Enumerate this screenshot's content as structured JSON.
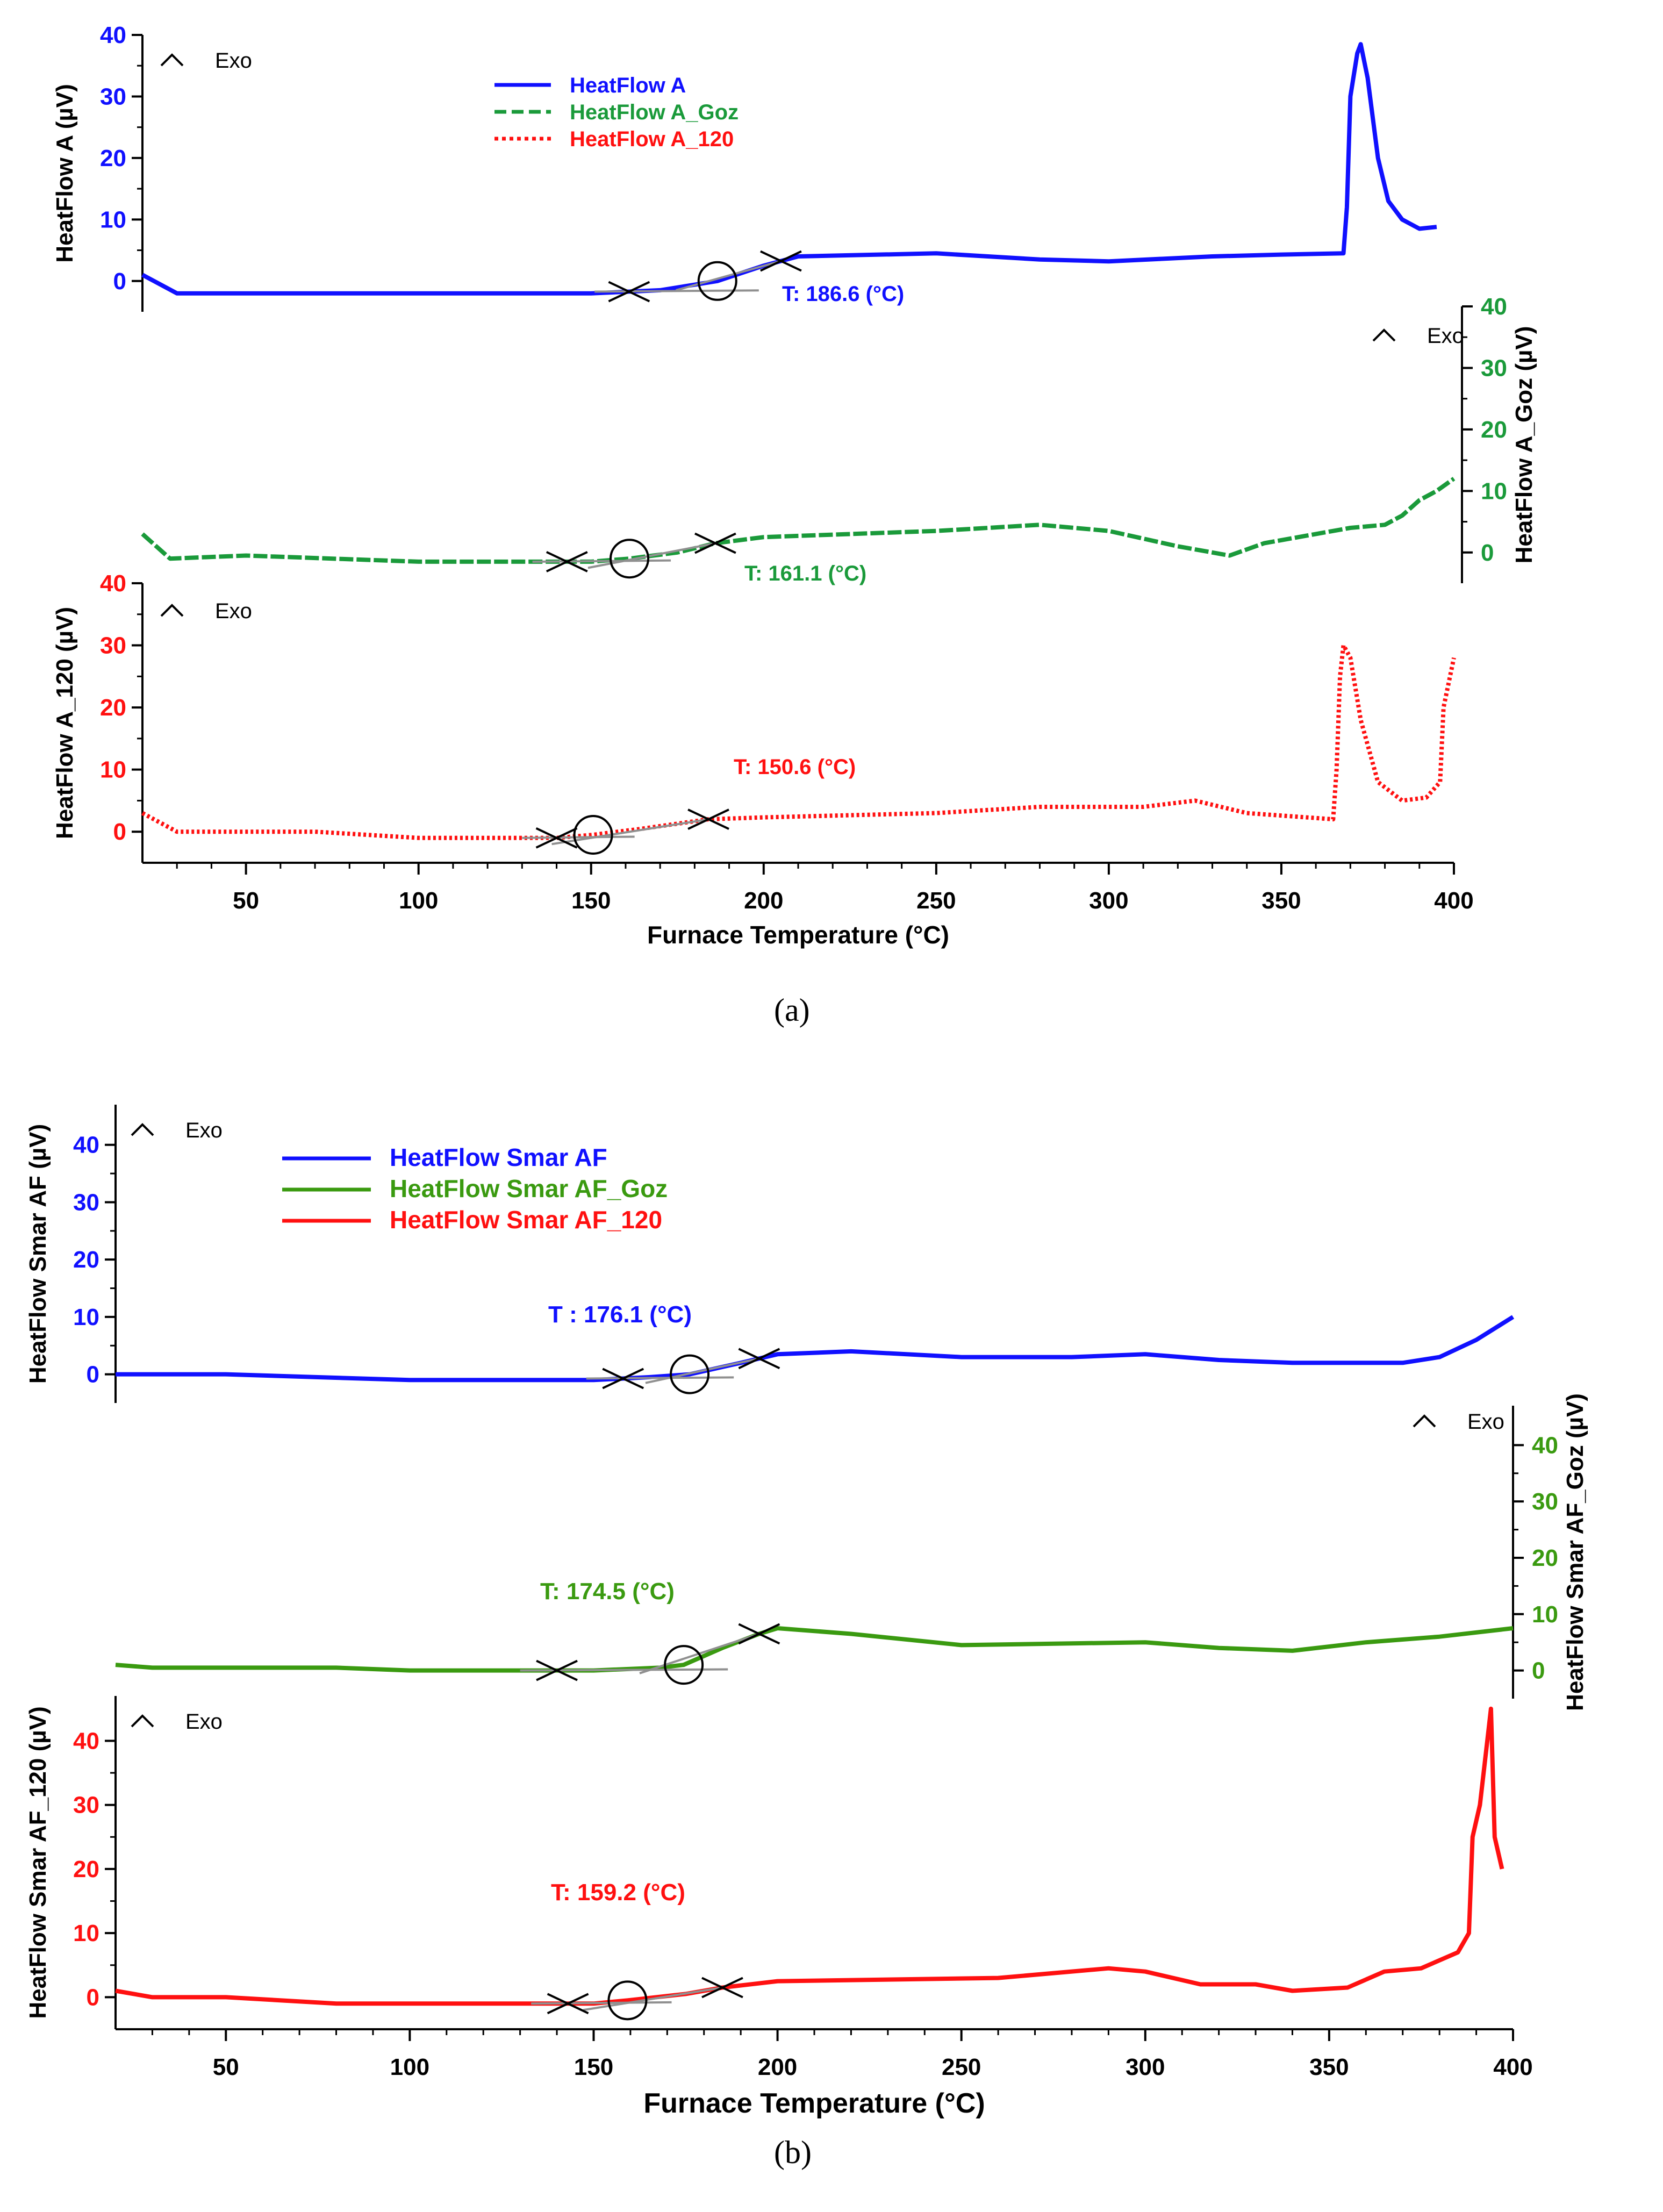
{
  "colors": {
    "blue": "#1010ff",
    "green": "#1a9a3a",
    "red": "#ff1010",
    "green_b": "#3a9a10",
    "tangent": "#909090",
    "axis": "#000000"
  },
  "common": {
    "exo_label": "Exo"
  },
  "panels": [
    {
      "caption": "(a)",
      "x_axis": {
        "label": "Furnace Temperature (°C)",
        "ticks": [
          "50",
          "100",
          "150",
          "200",
          "250",
          "300",
          "350",
          "400"
        ],
        "tick_values": [
          50,
          100,
          150,
          200,
          250,
          300,
          350,
          400
        ],
        "range": [
          20,
          400
        ]
      },
      "legend": [
        {
          "label": "HeatFlow   A",
          "style": "solid",
          "color_key": "blue"
        },
        {
          "label": "HeatFlow   A_Goz",
          "style": "dashed",
          "color_key": "green"
        },
        {
          "label": "HeatFlow   A_120",
          "style": "dotted",
          "color_key": "red"
        }
      ],
      "series": [
        {
          "name": "HeatFlow A",
          "color_key": "blue",
          "y_label": "HeatFlow  A (µV)",
          "y_ticks": [
            "0",
            "10",
            "20",
            "30",
            "40"
          ],
          "axis_side": "left",
          "tg_label": "T:  186.6  (°C)",
          "tg_value": 186.6,
          "onset": 161,
          "end": 205,
          "points": [
            [
              20,
              1
            ],
            [
              30,
              -2
            ],
            [
              100,
              -2
            ],
            [
              150,
              -2
            ],
            [
              170,
              -1.5
            ],
            [
              186.6,
              0
            ],
            [
              200,
              2.5
            ],
            [
              210,
              4
            ],
            [
              250,
              4.5
            ],
            [
              280,
              3.5
            ],
            [
              300,
              3.2
            ],
            [
              330,
              4
            ],
            [
              350,
              4.3
            ],
            [
              368,
              4.5
            ],
            [
              369,
              12
            ],
            [
              370,
              30
            ],
            [
              372,
              37
            ],
            [
              373,
              38.5
            ],
            [
              375,
              33
            ],
            [
              378,
              20
            ],
            [
              381,
              13
            ],
            [
              385,
              10
            ],
            [
              390,
              8.5
            ],
            [
              395,
              8.8
            ]
          ]
        },
        {
          "name": "HeatFlow A_Goz",
          "color_key": "green",
          "y_label": "HeatFlow  A_Goz (µV)",
          "y_ticks": [
            "0",
            "10",
            "20",
            "30",
            "40"
          ],
          "axis_side": "right",
          "tg_label": "T:  161.1  (°C)",
          "tg_value": 161.1,
          "onset": 143,
          "end": 186,
          "points": [
            [
              20,
              3
            ],
            [
              28,
              -1
            ],
            [
              50,
              -0.5
            ],
            [
              100,
              -1.5
            ],
            [
              150,
              -1.5
            ],
            [
              161.1,
              -1
            ],
            [
              175,
              0
            ],
            [
              186,
              1.5
            ],
            [
              200,
              2.5
            ],
            [
              250,
              3.5
            ],
            [
              280,
              4.5
            ],
            [
              300,
              3.5
            ],
            [
              320,
              1
            ],
            [
              335,
              -0.5
            ],
            [
              345,
              1.5
            ],
            [
              360,
              3
            ],
            [
              370,
              4
            ],
            [
              380,
              4.5
            ],
            [
              385,
              6
            ],
            [
              390,
              8.5
            ],
            [
              395,
              10
            ],
            [
              400,
              12
            ]
          ]
        },
        {
          "name": "HeatFlow A_120",
          "color_key": "red",
          "y_label": "HeatFlow   A_120 (µV)",
          "y_ticks": [
            "0",
            "10",
            "20",
            "30",
            "40"
          ],
          "axis_side": "left",
          "tg_label": "T:  150.6  (°C)",
          "tg_value": 150.6,
          "onset": 140,
          "end": 184,
          "points": [
            [
              20,
              3
            ],
            [
              30,
              0
            ],
            [
              70,
              0
            ],
            [
              100,
              -1
            ],
            [
              140,
              -1
            ],
            [
              150.6,
              -0.5
            ],
            [
              165,
              0.5
            ],
            [
              184,
              2
            ],
            [
              200,
              2.3
            ],
            [
              250,
              3
            ],
            [
              280,
              4
            ],
            [
              310,
              4
            ],
            [
              325,
              5
            ],
            [
              340,
              3
            ],
            [
              365,
              2
            ],
            [
              366,
              10
            ],
            [
              367,
              25
            ],
            [
              368,
              30
            ],
            [
              370,
              28
            ],
            [
              373,
              18
            ],
            [
              378,
              8
            ],
            [
              385,
              5
            ],
            [
              392,
              5.5
            ],
            [
              396,
              8
            ],
            [
              397,
              20
            ],
            [
              400,
              28
            ]
          ]
        }
      ]
    },
    {
      "caption": "(b)",
      "x_axis": {
        "label": "Furnace Temperature (°C)",
        "ticks": [
          "50",
          "100",
          "150",
          "200",
          "250",
          "300",
          "350",
          "400"
        ],
        "tick_values": [
          50,
          100,
          150,
          200,
          250,
          300,
          350,
          400
        ],
        "range": [
          20,
          400
        ]
      },
      "legend": [
        {
          "label": "HeatFlow   Smar AF",
          "style": "solid",
          "color_key": "blue"
        },
        {
          "label": "HeatFlow   Smar AF_Goz",
          "style": "solid",
          "color_key": "green_b"
        },
        {
          "label": "HeatFlow   Smar AF_120",
          "style": "solid",
          "color_key": "red"
        }
      ],
      "series": [
        {
          "name": "HeatFlow Smar AF",
          "color_key": "blue",
          "y_label": "HeatFlow   Smar AF (µV)",
          "y_ticks": [
            "0",
            "10",
            "20",
            "30",
            "40"
          ],
          "axis_side": "left",
          "tg_label": "T :  176.1  (°C)",
          "tg_value": 176.1,
          "onset": 158,
          "end": 195,
          "points": [
            [
              20,
              0
            ],
            [
              50,
              0
            ],
            [
              100,
              -1
            ],
            [
              150,
              -1
            ],
            [
              165,
              -0.5
            ],
            [
              176.1,
              0
            ],
            [
              190,
              2
            ],
            [
              200,
              3.5
            ],
            [
              220,
              4
            ],
            [
              250,
              3
            ],
            [
              280,
              3
            ],
            [
              300,
              3.5
            ],
            [
              320,
              2.5
            ],
            [
              340,
              2
            ],
            [
              370,
              2
            ],
            [
              380,
              3
            ],
            [
              390,
              6
            ],
            [
              400,
              10
            ]
          ]
        },
        {
          "name": "HeatFlow Smar AF_Goz",
          "color_key": "green_b",
          "y_label": "HeatFlow   Smar AF_Goz (µV)",
          "y_ticks": [
            "0",
            "10",
            "20",
            "30",
            "40"
          ],
          "axis_side": "right",
          "tg_label": "T:  174.5  (°C)",
          "tg_value": 174.5,
          "onset": 140,
          "end": 195,
          "points": [
            [
              20,
              1
            ],
            [
              30,
              0.5
            ],
            [
              80,
              0.5
            ],
            [
              100,
              0
            ],
            [
              150,
              0
            ],
            [
              168,
              0.5
            ],
            [
              174.5,
              1
            ],
            [
              185,
              4
            ],
            [
              195,
              6.5
            ],
            [
              200,
              7.5
            ],
            [
              220,
              6.5
            ],
            [
              250,
              4.5
            ],
            [
              300,
              5
            ],
            [
              320,
              4
            ],
            [
              340,
              3.5
            ],
            [
              360,
              5
            ],
            [
              380,
              6
            ],
            [
              400,
              7.5
            ]
          ]
        },
        {
          "name": "HeatFlow Smar AF_120",
          "color_key": "red",
          "y_label": "HeatFlow   Smar AF_120 (µV)",
          "y_ticks": [
            "0",
            "10",
            "20",
            "30",
            "40"
          ],
          "axis_side": "left",
          "tg_label": "T:  159.2  (°C)",
          "tg_value": 159.2,
          "onset": 143,
          "end": 185,
          "points": [
            [
              20,
              1
            ],
            [
              30,
              0
            ],
            [
              50,
              0
            ],
            [
              80,
              -1
            ],
            [
              120,
              -1
            ],
            [
              150,
              -1
            ],
            [
              159.2,
              -0.5
            ],
            [
              175,
              0.5
            ],
            [
              185,
              1.5
            ],
            [
              200,
              2.5
            ],
            [
              260,
              3
            ],
            [
              290,
              4.5
            ],
            [
              300,
              4
            ],
            [
              315,
              2
            ],
            [
              330,
              2
            ],
            [
              340,
              1
            ],
            [
              355,
              1.5
            ],
            [
              365,
              4
            ],
            [
              375,
              4.5
            ],
            [
              385,
              7
            ],
            [
              388,
              10
            ],
            [
              389,
              25
            ],
            [
              391,
              30
            ],
            [
              393,
              40
            ],
            [
              394,
              45
            ],
            [
              395,
              25
            ],
            [
              397,
              20
            ]
          ]
        }
      ]
    }
  ]
}
